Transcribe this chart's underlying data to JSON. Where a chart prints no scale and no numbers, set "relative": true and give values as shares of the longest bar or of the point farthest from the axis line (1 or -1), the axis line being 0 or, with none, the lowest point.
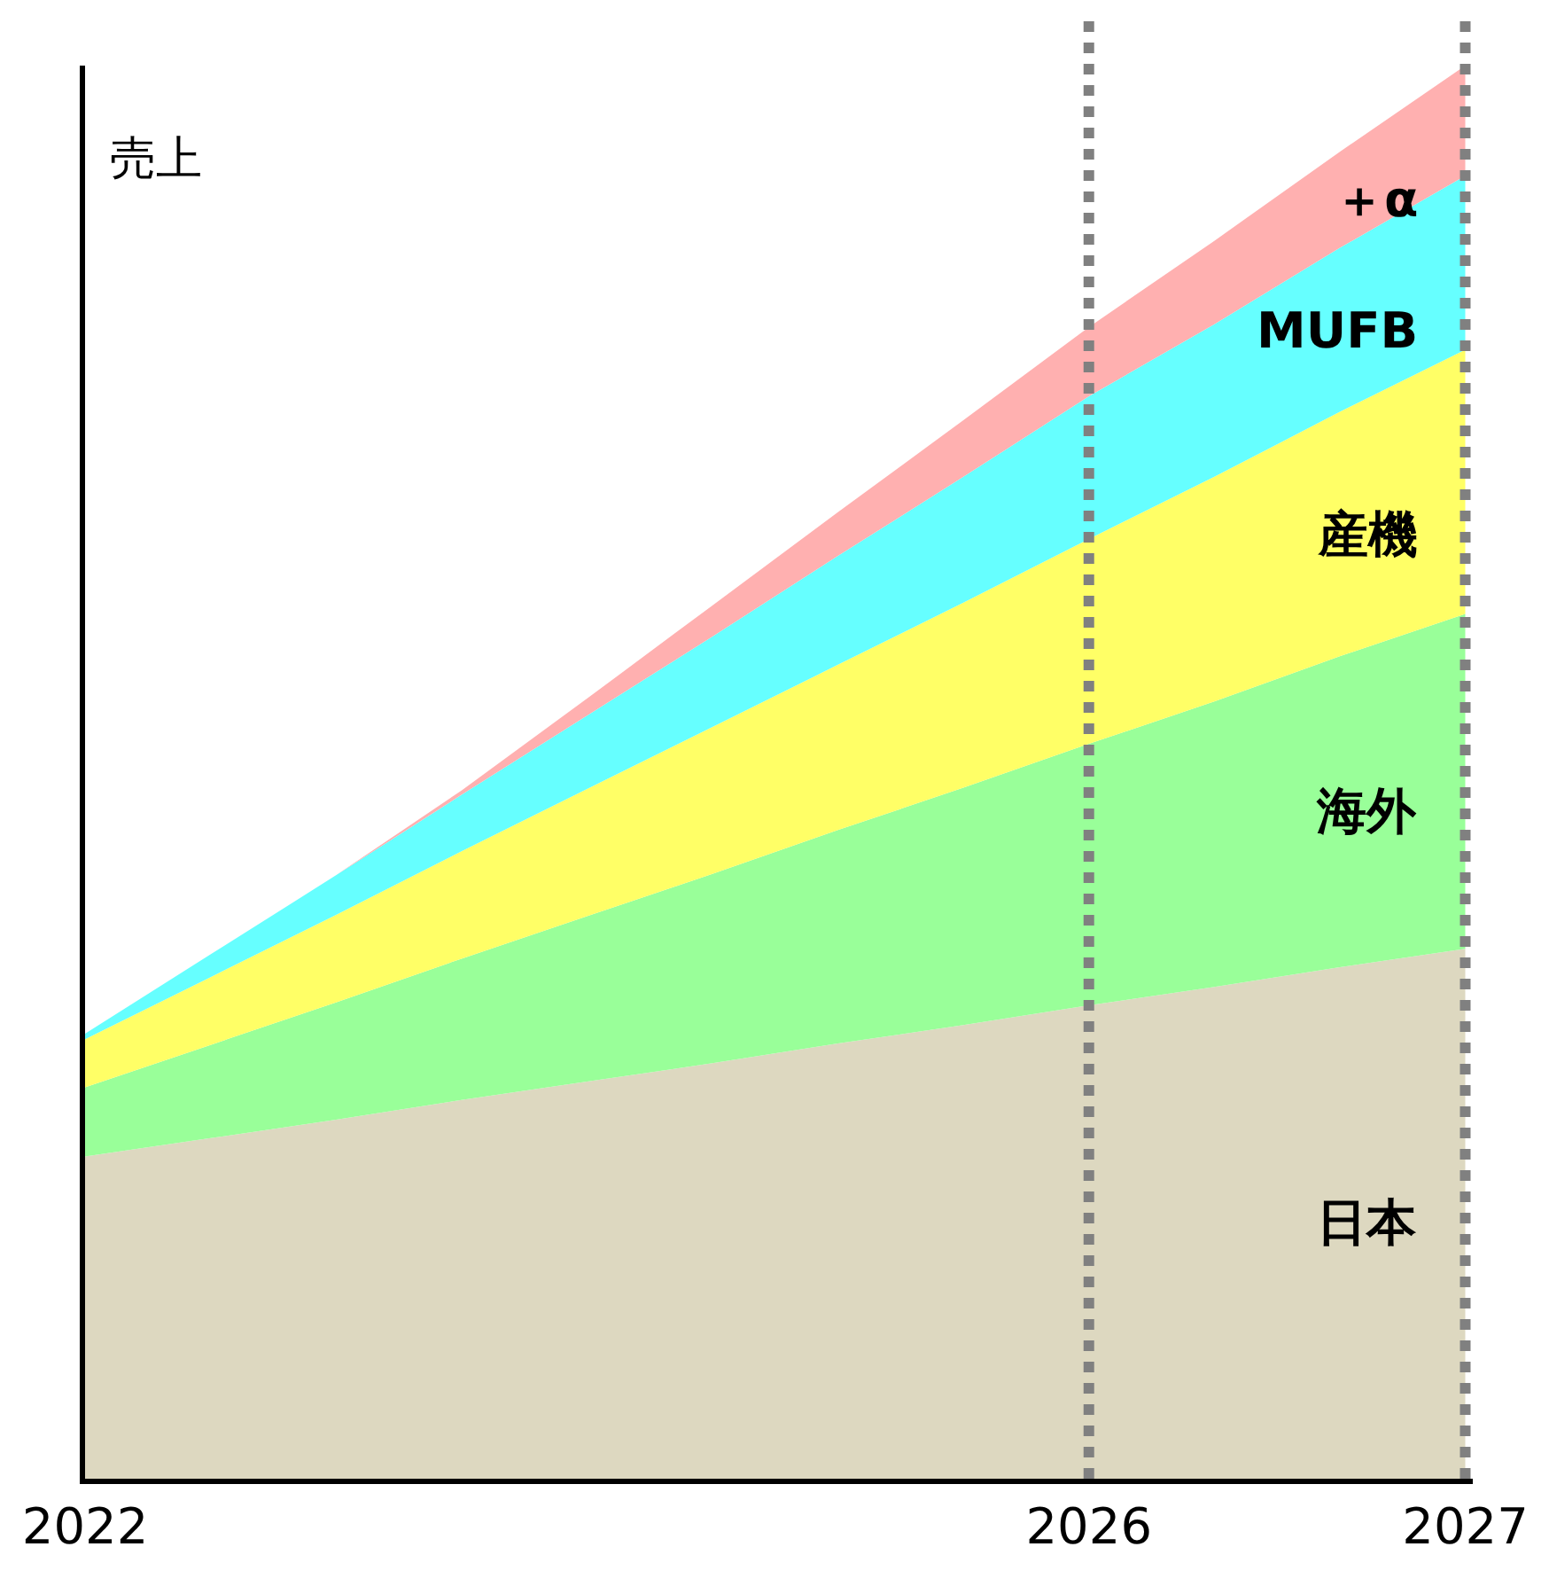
{
  "chart_data": {
    "type": "area",
    "stacked": true,
    "relative": true,
    "ylabel": "売上",
    "categories": [
      "2022",
      null,
      null,
      null,
      null,
      null,
      null,
      null,
      "2026",
      null,
      null,
      "2027"
    ],
    "series": [
      {
        "name": "日本",
        "color": "#ddd8c0",
        "values": [
          0.228,
          0.241,
          0.254,
          0.268,
          0.281,
          0.294,
          0.308,
          0.321,
          0.335,
          0.348,
          0.362,
          0.375
        ]
      },
      {
        "name": "海外",
        "color": "#99ff99",
        "values": [
          0.049,
          0.066,
          0.083,
          0.1,
          0.117,
          0.134,
          0.151,
          0.168,
          0.185,
          0.202,
          0.22,
          0.237
        ]
      },
      {
        "name": "産機",
        "color": "#ffff66",
        "values": [
          0.034,
          0.048,
          0.062,
          0.076,
          0.09,
          0.104,
          0.117,
          0.131,
          0.145,
          0.159,
          0.173,
          0.187
        ]
      },
      {
        "name": "MUFB",
        "color": "#66ffff",
        "values": [
          0.004,
          0.016,
          0.028,
          0.04,
          0.052,
          0.064,
          0.077,
          0.089,
          0.101,
          0.108,
          0.116,
          0.123
        ]
      },
      {
        "name": "＋α",
        "color": "#ffb0b0",
        "values": [
          0,
          0,
          0,
          0.003,
          0.012,
          0.022,
          0.031,
          0.04,
          0.049,
          0.059,
          0.068,
          0.078
        ]
      }
    ],
    "ref_lines": [
      {
        "axis": "x",
        "value": "2026",
        "color": "#808080",
        "line_style": "dotted"
      },
      {
        "axis": "x",
        "value": "2027",
        "color": "#808080",
        "line_style": "dotted"
      }
    ],
    "legend": false
  }
}
